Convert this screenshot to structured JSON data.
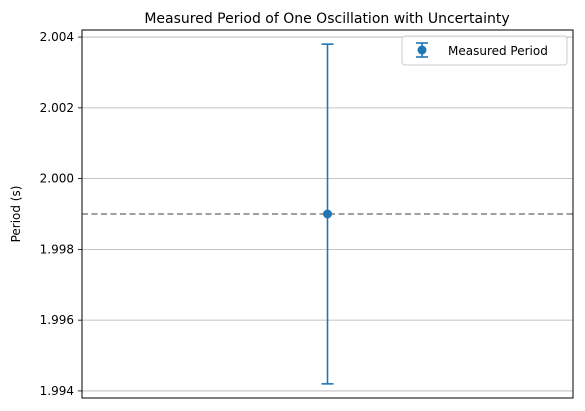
{
  "chart_data": {
    "type": "scatter",
    "title": "Measured Period of One Oscillation with Uncertainty",
    "xlabel": "",
    "ylabel": "Period (s)",
    "ylim": [
      1.9938,
      2.0042
    ],
    "yticks": [
      1.994,
      1.996,
      1.998,
      2.0,
      2.002,
      2.004
    ],
    "ytick_labels": [
      "1.994",
      "1.996",
      "1.998",
      "2.000",
      "2.002",
      "2.004"
    ],
    "grid": "horizontal",
    "legend_placement": "top-right",
    "series": [
      {
        "name": "Measured Period",
        "kind": "errorbar",
        "color": "#1f77b4",
        "x": [
          0
        ],
        "y": [
          1.999
        ],
        "yerr": [
          0.0048
        ]
      }
    ],
    "reference_line": {
      "y": 1.999,
      "style": "dashed",
      "color": "#808080"
    },
    "xlim": [
      -1,
      1
    ]
  },
  "colors": {
    "series": "#1f77b4",
    "grid": "#b0b0b0",
    "reference": "#808080",
    "axis": "#000000"
  }
}
